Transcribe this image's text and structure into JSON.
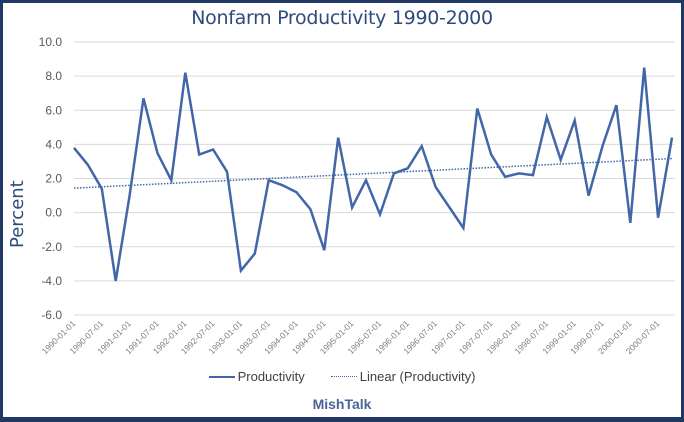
{
  "chart_data": {
    "type": "line",
    "title": "Nonfarm Productivity 1990-2000",
    "xlabel": "",
    "ylabel": "Percent",
    "ylim": [
      -6.0,
      10.0
    ],
    "yticks": [
      "10.0",
      "8.0",
      "6.0",
      "4.0",
      "2.0",
      "0.0",
      "-2.0",
      "-4.0",
      "-6.0"
    ],
    "ytick_values": [
      10,
      8,
      6,
      4,
      2,
      0,
      -2,
      -4,
      -6
    ],
    "grid": true,
    "legend_position": "bottom",
    "x": [
      "1990-01-01",
      "1990-04-01",
      "1990-07-01",
      "1990-10-01",
      "1991-01-01",
      "1991-04-01",
      "1991-07-01",
      "1991-10-01",
      "1992-01-01",
      "1992-04-01",
      "1992-07-01",
      "1992-10-01",
      "1993-01-01",
      "1993-04-01",
      "1993-07-01",
      "1993-10-01",
      "1994-01-01",
      "1994-04-01",
      "1994-07-01",
      "1994-10-01",
      "1995-01-01",
      "1995-04-01",
      "1995-07-01",
      "1995-10-01",
      "1996-01-01",
      "1996-04-01",
      "1996-07-01",
      "1996-10-01",
      "1997-01-01",
      "1997-04-01",
      "1997-07-01",
      "1997-10-01",
      "1998-01-01",
      "1998-04-01",
      "1998-07-01",
      "1998-10-01",
      "1999-01-01",
      "1999-04-01",
      "1999-07-01",
      "1999-10-01",
      "2000-01-01",
      "2000-04-01",
      "2000-07-01",
      "2000-10-01"
    ],
    "xtick_labels": [
      "1990-01-01",
      "1990-07-01",
      "1991-01-01",
      "1991-07-01",
      "1992-01-01",
      "1992-07-01",
      "1993-01-01",
      "1993-07-01",
      "1994-01-01",
      "1994-07-01",
      "1995-01-01",
      "1995-07-01",
      "1996-01-01",
      "1996-07-01",
      "1997-01-01",
      "1997-07-01",
      "1998-01-01",
      "1998-07-01",
      "1999-01-01",
      "1999-07-01",
      "2000-01-01",
      "2000-07-01"
    ],
    "series": [
      {
        "name": "Productivity",
        "style": "solid",
        "color": "#4267a8",
        "values": [
          3.8,
          2.8,
          1.4,
          -4.0,
          1.0,
          6.7,
          3.5,
          1.9,
          8.2,
          3.4,
          3.7,
          2.4,
          -3.4,
          -2.4,
          1.9,
          1.6,
          1.2,
          0.2,
          -2.2,
          4.4,
          0.3,
          1.9,
          -0.1,
          2.3,
          2.6,
          3.9,
          1.5,
          0.3,
          -0.9,
          6.1,
          3.4,
          2.1,
          2.3,
          2.2,
          5.6,
          3.1,
          5.4,
          1.0,
          3.9,
          6.3,
          -0.6,
          8.5,
          -0.3,
          4.4
        ]
      },
      {
        "name": "Linear (Productivity)",
        "style": "dotted",
        "color": "#4267a8",
        "trendline_of": "Productivity"
      }
    ]
  },
  "legend": {
    "items": [
      "Productivity",
      "Linear (Productivity)"
    ]
  },
  "footer": "MishTalk"
}
